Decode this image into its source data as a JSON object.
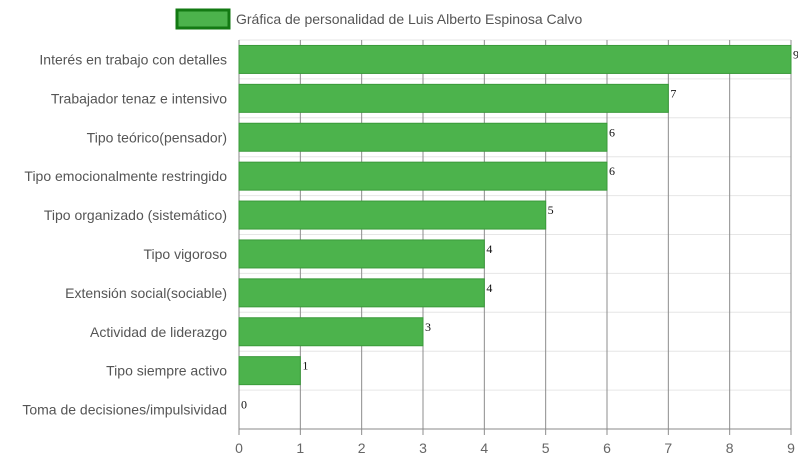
{
  "chart_data": {
    "type": "bar",
    "orientation": "horizontal",
    "title": "",
    "xlabel": "",
    "ylabel": "",
    "categories": [
      "Interés en trabajo con detalles",
      "Trabajador tenaz e intensivo",
      "Tipo teórico(pensador)",
      "Tipo emocionalmente restringido",
      "Tipo organizado (sistemático)",
      "Tipo vigoroso",
      "Extensión social(sociable)",
      "Actividad de liderazgo",
      "Tipo siempre activo",
      "Toma de decisiones/impulsividad"
    ],
    "series": [
      {
        "name": "Gráfica de personalidad de Luis Alberto Espinosa Calvo",
        "values": [
          9,
          7,
          6,
          6,
          5,
          4,
          4,
          3,
          1,
          0
        ]
      }
    ],
    "xlim": [
      0,
      9
    ],
    "x_ticks": [
      "0",
      "1",
      "2",
      "3",
      "4",
      "5",
      "6",
      "7",
      "8",
      "9"
    ],
    "grid": true,
    "legend_position": "top",
    "data_labels": true,
    "colors": {
      "bar_fill": "#4cb34c",
      "bar_border": "#3a9a3a",
      "legend_fill": "#4cb34c",
      "legend_border": "#137a13",
      "grid": "#e6e6e6",
      "vertical_grid": "#8c8c8c",
      "axis": "#888888"
    }
  }
}
